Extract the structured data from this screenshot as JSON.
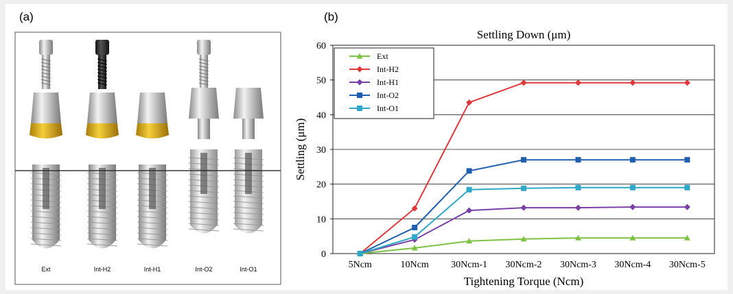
{
  "panel_a": {
    "label": "(a)",
    "items": [
      "Ext",
      "Int-H2",
      "Int-H1",
      "Int-O2",
      "Int-O1"
    ]
  },
  "panel_b": {
    "label": "(b)"
  },
  "chart_data": {
    "type": "line",
    "title": "Settling Down (μm)",
    "x_label": "Tightening Torque (Ncm)",
    "y_label": "Settling (μm)",
    "categories": [
      "5Ncm",
      "10Ncm",
      "30Ncm-1",
      "30Ncm-2",
      "30Ncm-3",
      "30Ncm-4",
      "30Ncm-5"
    ],
    "ylim": [
      0,
      60
    ],
    "yticks": [
      0,
      10,
      20,
      30,
      40,
      50,
      60
    ],
    "grid": true,
    "legend": "upper left",
    "series": [
      {
        "name": "Ext",
        "color": "#7dc242",
        "marker": "triangle",
        "values": [
          0,
          1.6,
          3.6,
          4.2,
          4.5,
          4.5,
          4.5
        ]
      },
      {
        "name": "Int-H2",
        "color": "#e0383a",
        "marker": "diamond",
        "values": [
          0,
          13,
          43.5,
          49.2,
          49.2,
          49.2,
          49.2
        ]
      },
      {
        "name": "Int-H1",
        "color": "#7b3fa8",
        "marker": "diamond",
        "values": [
          0,
          4,
          12.4,
          13.2,
          13.2,
          13.4,
          13.4
        ]
      },
      {
        "name": "Int-O2",
        "color": "#1f5fb0",
        "marker": "square",
        "values": [
          0,
          7.5,
          23.8,
          27,
          27,
          27,
          27
        ]
      },
      {
        "name": "Int-O1",
        "color": "#2fa8c8",
        "marker": "square",
        "values": [
          0,
          4.8,
          18.4,
          18.8,
          19,
          19,
          19
        ]
      }
    ]
  }
}
